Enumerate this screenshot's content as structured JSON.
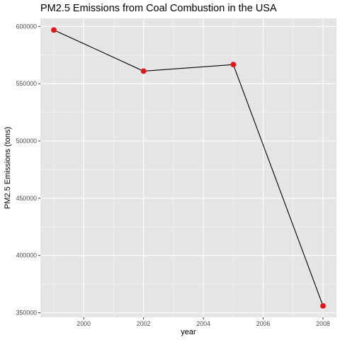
{
  "chart_data": {
    "type": "line",
    "title": "PM2.5 Emissions from Coal Combustion in the USA",
    "xlabel": "year",
    "ylabel": "PM2.5 Emissions (tons)",
    "x": [
      1999,
      2002,
      2005,
      2008
    ],
    "series": [
      {
        "values": [
          596900,
          561000,
          566700,
          356000
        ]
      }
    ],
    "xlim": [
      1998.55,
      2008.45
    ],
    "ylim": [
      346000,
      607000
    ],
    "x_ticks": [
      2000,
      2002,
      2004,
      2006,
      2008
    ],
    "x_tick_labels": [
      "2000",
      "2002",
      "2004",
      "2006",
      "2008"
    ],
    "y_ticks": [
      350000,
      400000,
      450000,
      500000,
      550000,
      600000
    ],
    "y_tick_labels": [
      "350000",
      "400000",
      "450000",
      "500000",
      "550000",
      "600000"
    ],
    "grid": true,
    "legend": "none",
    "colors": {
      "panel_background": "#e5e5e5",
      "grid_major": "#ffffff",
      "line": "#000000",
      "points": "#e8141c",
      "tick_label": "#4d4d4d"
    }
  }
}
